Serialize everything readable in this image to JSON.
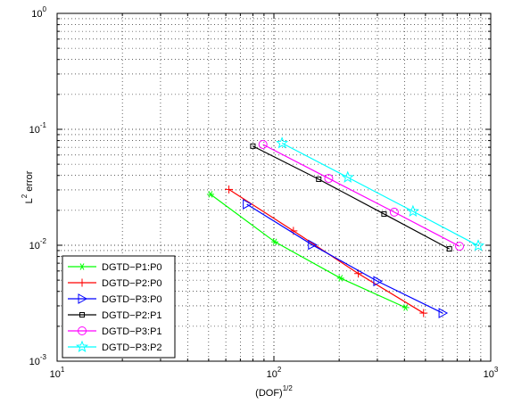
{
  "chart_data": {
    "type": "line",
    "xscale": "log",
    "yscale": "log",
    "xlim": [
      10,
      1000
    ],
    "ylim": [
      0.001,
      1
    ],
    "grid": true,
    "legend_position": "bottom-left",
    "xlabel_base": "(DOF)",
    "xlabel_sup": "1/2",
    "ylabel_pre": "L",
    "ylabel_sup": "2",
    "ylabel_post": " error",
    "x_ticks": [
      {
        "value": 10,
        "base": "10",
        "exp": "1"
      },
      {
        "value": 100,
        "base": "10",
        "exp": "2"
      },
      {
        "value": 1000,
        "base": "10",
        "exp": "3"
      }
    ],
    "y_ticks": [
      {
        "value": 1,
        "base": "10",
        "exp": "0"
      },
      {
        "value": 0.1,
        "base": "10",
        "exp": "-1"
      },
      {
        "value": 0.01,
        "base": "10",
        "exp": "-2"
      },
      {
        "value": 0.001,
        "base": "10",
        "exp": "-3"
      }
    ],
    "series": [
      {
        "name": "DGTD−P1:P0",
        "color": "#00ff00",
        "marker": "asterisk",
        "x": [
          51,
          101,
          203,
          405
        ],
        "y": [
          0.0275,
          0.0107,
          0.0052,
          0.0029
        ]
      },
      {
        "name": "DGTD−P2:P0",
        "color": "#ff0000",
        "marker": "plus",
        "x": [
          62,
          123,
          245,
          490
        ],
        "y": [
          0.0303,
          0.0133,
          0.0057,
          0.0026
        ]
      },
      {
        "name": "DGTD−P3:P0",
        "color": "#0000ff",
        "marker": "triangle-right",
        "x": [
          75,
          150,
          300,
          600
        ],
        "y": [
          0.0226,
          0.0101,
          0.0049,
          0.0026
        ]
      },
      {
        "name": "DGTD−P2:P1",
        "color": "#000000",
        "marker": "square",
        "x": [
          80,
          161,
          322,
          645
        ],
        "y": [
          0.0716,
          0.0371,
          0.0186,
          0.0093
        ]
      },
      {
        "name": "DGTD−P3:P1",
        "color": "#ff00ff",
        "marker": "circle",
        "x": [
          89,
          179,
          359,
          718
        ],
        "y": [
          0.074,
          0.0377,
          0.0193,
          0.0098
        ]
      },
      {
        "name": "DGTD−P3:P2",
        "color": "#00ffff",
        "marker": "star",
        "x": [
          109,
          219,
          438,
          876
        ],
        "y": [
          0.076,
          0.0385,
          0.0196,
          0.0099
        ]
      }
    ]
  }
}
